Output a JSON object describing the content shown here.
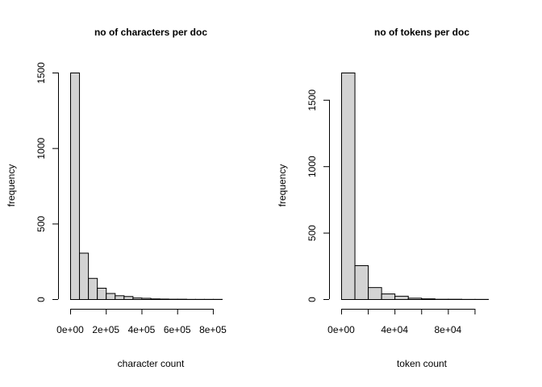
{
  "chart_data": [
    {
      "type": "bar",
      "title": "no of characters per doc",
      "xlabel": "character count",
      "ylabel": "frequency",
      "bin_width": 50000,
      "x_bin_starts": [
        0,
        50000,
        100000,
        150000,
        200000,
        250000,
        300000,
        350000,
        400000,
        450000,
        500000,
        550000,
        600000,
        650000,
        700000,
        750000,
        800000
      ],
      "values": [
        1500,
        307,
        140,
        75,
        40,
        25,
        20,
        10,
        8,
        4,
        3,
        2,
        2,
        1,
        1,
        1,
        1
      ],
      "xlim": [
        0,
        850000
      ],
      "ylim": [
        0,
        1500
      ],
      "x_ticks": [
        0,
        200000,
        400000,
        600000,
        800000
      ],
      "x_tick_labels": [
        "0e+00",
        "2e+05",
        "4e+05",
        "6e+05",
        "8e+05"
      ],
      "y_ticks": [
        0,
        500,
        1000,
        1500
      ],
      "y_tick_labels": [
        "0",
        "500",
        "1000",
        "1500"
      ],
      "grid": false,
      "colors": {
        "fill": "#d3d3d3",
        "stroke": "#000000"
      }
    },
    {
      "type": "bar",
      "title": "no of tokens per doc",
      "xlabel": "token count",
      "ylabel": "frequency",
      "bin_width": 10000,
      "x_bin_starts": [
        0,
        10000,
        20000,
        30000,
        40000,
        50000,
        60000,
        70000,
        80000,
        90000,
        100000
      ],
      "values": [
        1705,
        255,
        90,
        42,
        25,
        10,
        5,
        2,
        2,
        1,
        1
      ],
      "xlim": [
        0,
        110000
      ],
      "ylim": [
        0,
        1705
      ],
      "x_ticks": [
        0,
        40000,
        80000
      ],
      "x_tick_labels": [
        "0e+00",
        "4e+04",
        "8e+04"
      ],
      "extra_x_ticks": [
        20000,
        60000,
        100000
      ],
      "y_ticks": [
        0,
        500,
        1000,
        1500
      ],
      "y_tick_labels": [
        "0",
        "500",
        "1000",
        "1500"
      ],
      "grid": false,
      "colors": {
        "fill": "#d3d3d3",
        "stroke": "#000000"
      }
    }
  ]
}
